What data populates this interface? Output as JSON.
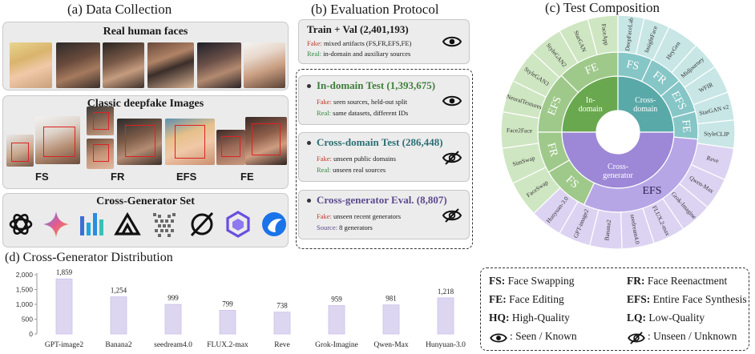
{
  "sections": {
    "a_title": "(a) Data Collection",
    "b_title": "(b) Evaluation Protocol",
    "c_title": "(c) Test  Composition",
    "d_title": "(d) Cross-Generator Distribution"
  },
  "data_collection": {
    "real_title": "Real human faces",
    "deepfake_title": "Classic deepfake Images",
    "deepfake_labels": [
      "FS",
      "FR",
      "EFS",
      "FE"
    ],
    "generator_title": "Cross-Generator Set"
  },
  "protocol": {
    "train": {
      "title": "Train + Val (2,401,193)",
      "fake_key": "Fake:",
      "fake_text": " mixed artifacts (FS,FR,EFS,FE)",
      "real_key": "Real:",
      "real_text": " in-domain and auxiliary sources",
      "icon": "eye-icon"
    },
    "in_domain": {
      "title": "In-domain Test (1,393,675)",
      "fake_key": "Fake:",
      "fake_text": " seen sources, held-out split",
      "real_key": "Real:",
      "real_text": " same datasets, different IDs",
      "icon": "eye-icon"
    },
    "cross_domain": {
      "title": "Cross-domain Test (286,448)",
      "fake_key": "Fake:",
      "fake_text": " unseen public domains",
      "real_key": "Real:",
      "real_text": " unseen real sources",
      "icon": "eye-slash-icon"
    },
    "cross_generator": {
      "title": "Cross-generator Eval. (8,807)",
      "fake_key": "Fake:",
      "fake_text": " unseen recent generators",
      "src_key": "Source:",
      "src_text": " 8 generators",
      "icon": "eye-slash-icon"
    },
    "colors": {
      "title_train": "#222222",
      "title_in": "#3f7f3a",
      "title_cross": "#2c6f73",
      "title_gen": "#5b4a8f"
    }
  },
  "sunburst": {
    "inner": [
      {
        "label": "In-\ndomain",
        "start": 270,
        "end": 360,
        "color": "#6aa84f"
      },
      {
        "label": "Cross-\ndomain",
        "start": 0,
        "end": 90,
        "color": "#5aa9a9"
      },
      {
        "label": "Cross-\ngenerator",
        "start": 90,
        "end": 270,
        "color": "#9c88d6"
      }
    ],
    "middle": [
      {
        "label": "FE",
        "start": 315,
        "end": 360,
        "color": "#9fc98a"
      },
      {
        "label": "EFS",
        "start": 270,
        "end": 315,
        "color": "#9fc98a"
      },
      {
        "label": "FR",
        "start": 240,
        "end": 270,
        "color": "#9fc98a"
      },
      {
        "label": "FS",
        "start": 205,
        "end": 240,
        "color": "#9fc98a"
      },
      {
        "label": "FS",
        "start": 0,
        "end": 25,
        "color": "#86c6c6"
      },
      {
        "label": "FR",
        "start": 25,
        "end": 50,
        "color": "#86c6c6"
      },
      {
        "label": "EFS",
        "start": 50,
        "end": 75,
        "color": "#86c6c6"
      },
      {
        "label": "FE",
        "start": 75,
        "end": 95,
        "color": "#86c6c6"
      },
      {
        "label": "EFS",
        "start": 95,
        "end": 205,
        "color": "#b7a6e6"
      }
    ],
    "outer": [
      {
        "label": "FaceApp",
        "start": 345,
        "end": 360,
        "color": "#cfe6c2"
      },
      {
        "label": "StarGAN",
        "start": 330,
        "end": 345,
        "color": "#cfe6c2"
      },
      {
        "label": "StyleGAN2",
        "start": 313,
        "end": 330,
        "color": "#cfe6c2"
      },
      {
        "label": "StyleGAN3",
        "start": 296,
        "end": 313,
        "color": "#cfe6c2"
      },
      {
        "label": "NeuralTextures",
        "start": 280,
        "end": 296,
        "color": "#cfe6c2"
      },
      {
        "label": "Face2Face",
        "start": 262,
        "end": 280,
        "color": "#cfe6c2"
      },
      {
        "label": "SimSwap",
        "start": 244,
        "end": 262,
        "color": "#cfe6c2"
      },
      {
        "label": "FaceSwap",
        "start": 226,
        "end": 244,
        "color": "#cfe6c2"
      },
      {
        "label": "DeepFaceLab",
        "start": 0,
        "end": 13,
        "color": "#c8e6e6"
      },
      {
        "label": "InsightFace",
        "start": 13,
        "end": 26,
        "color": "#c8e6e6"
      },
      {
        "label": "HeyGen",
        "start": 26,
        "end": 42,
        "color": "#c8e6e6"
      },
      {
        "label": "Midjourney",
        "start": 42,
        "end": 56,
        "color": "#c8e6e6"
      },
      {
        "label": "WFIR",
        "start": 56,
        "end": 70,
        "color": "#c8e6e6"
      },
      {
        "label": "StarGAN v2",
        "start": 70,
        "end": 84,
        "color": "#c8e6e6"
      },
      {
        "label": "StyleCLIP",
        "start": 84,
        "end": 98,
        "color": "#c8e6e6"
      },
      {
        "label": "Reve",
        "start": 98,
        "end": 114,
        "color": "#dcd3f2"
      },
      {
        "label": "Qwen-Max",
        "start": 114,
        "end": 130,
        "color": "#dcd3f2"
      },
      {
        "label": "Grok-Imagine",
        "start": 130,
        "end": 146,
        "color": "#dcd3f2"
      },
      {
        "label": "FLUX.2-max",
        "start": 146,
        "end": 162,
        "color": "#dcd3f2"
      },
      {
        "label": "seedream4.0",
        "start": 162,
        "end": 178,
        "color": "#dcd3f2"
      },
      {
        "label": "Banana2",
        "start": 178,
        "end": 194,
        "color": "#dcd3f2"
      },
      {
        "label": "GPT-image2",
        "start": 194,
        "end": 210,
        "color": "#dcd3f2"
      },
      {
        "label": "Hunyuan-3.0",
        "start": 210,
        "end": 226,
        "color": "#dcd3f2"
      }
    ]
  },
  "chart_data": {
    "type": "bar",
    "title": "(d) Cross-Generator Distribution",
    "categories": [
      "GPT-image2",
      "Banana2",
      "seedream4.0",
      "FLUX.2-max",
      "Reve",
      "Grok-Imagine",
      "Qwen-Max",
      "Hunyuan-3.0"
    ],
    "values": [
      1859,
      1254,
      999,
      799,
      738,
      959,
      981,
      1218
    ],
    "value_labels": [
      "1,859",
      "1,254",
      "999",
      "799",
      "738",
      "959",
      "981",
      "1,218"
    ],
    "yticks": [
      "0",
      "500",
      "1,000",
      "1,500",
      "2,000"
    ],
    "ylim": [
      0,
      2000
    ],
    "bar_color": "#ddd6f1",
    "grid": false
  },
  "legend": {
    "items": [
      {
        "key": "FS:",
        "text": " Face Swapping"
      },
      {
        "key": "FR:",
        "text": " Face Reenactment"
      },
      {
        "key": "FE:",
        "text": " Face Editing"
      },
      {
        "key": "EFS:",
        "text": " Entire Face Synthesis"
      },
      {
        "key": "HQ:",
        "text": " High-Quality"
      },
      {
        "key": "LQ:",
        "text": " Low-Quality"
      }
    ],
    "seen_text": ": Seen / Known",
    "unseen_text": ": Unseen / Unknown"
  }
}
